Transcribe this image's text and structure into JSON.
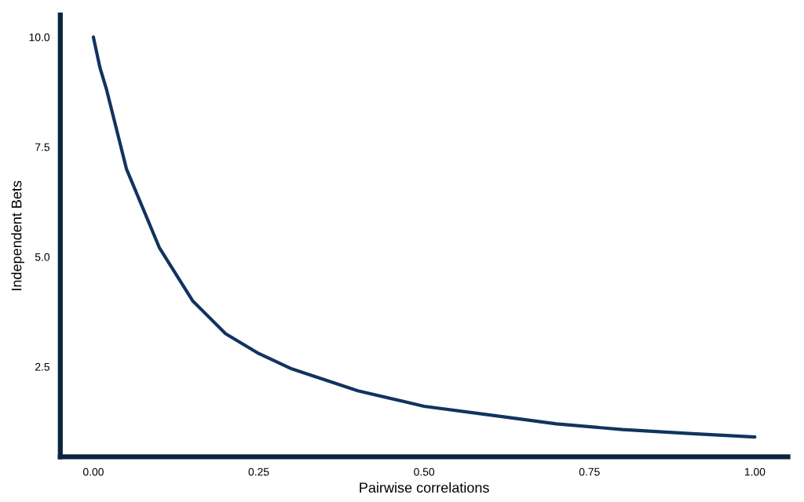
{
  "chart_data": {
    "type": "line",
    "xlabel": "Pairwise correlations",
    "ylabel": "Independent Bets",
    "x": [
      0,
      0.01,
      0.02,
      0.05,
      0.1,
      0.15,
      0.2,
      0.25,
      0.3,
      0.4,
      0.5,
      0.6,
      0.7,
      0.8,
      0.9,
      1.0
    ],
    "series": [
      {
        "color": "#12335e",
        "values": [
          10.0,
          9.3,
          8.8,
          7.0,
          5.2,
          4.0,
          3.25,
          2.8,
          2.45,
          1.95,
          1.6,
          1.4,
          1.2,
          1.07,
          0.98,
          0.9
        ]
      }
    ],
    "xlim": [
      -0.05,
      1.05
    ],
    "ylim": [
      0.45,
      10.5
    ],
    "xticks": [
      {
        "value": 0,
        "label": "0.00"
      },
      {
        "value": 0.25,
        "label": "0.25"
      },
      {
        "value": 0.5,
        "label": "0.50"
      },
      {
        "value": 0.75,
        "label": "0.75"
      },
      {
        "value": 1,
        "label": "1.00"
      }
    ],
    "yticks": [
      {
        "value": 2.5,
        "label": "2.5"
      },
      {
        "value": 5,
        "label": "5.0"
      },
      {
        "value": 7.5,
        "label": "7.5"
      },
      {
        "value": 10,
        "label": "10.0"
      }
    ],
    "grid": false,
    "legend": false
  }
}
